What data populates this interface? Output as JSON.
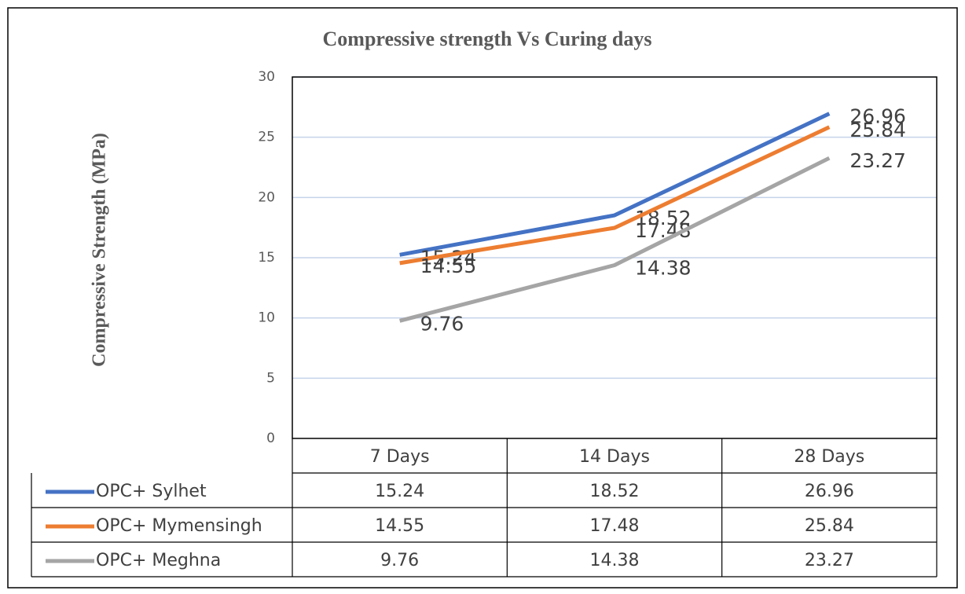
{
  "chart_data": {
    "type": "line",
    "title": "Compressive strength Vs Curing days",
    "y_label": "Compressive Strength (MPa)",
    "categories": [
      "7 Days",
      "14 Days",
      "28 Days"
    ],
    "series": [
      {
        "name": "OPC+ Sylhet",
        "color": "#4472c4",
        "values": [
          15.24,
          18.52,
          26.96
        ]
      },
      {
        "name": "OPC+ Mymensingh",
        "color": "#ed7d31",
        "values": [
          14.55,
          17.48,
          25.84
        ]
      },
      {
        "name": "OPC+ Meghna",
        "color": "#a5a5a5",
        "values": [
          9.76,
          14.38,
          23.27
        ]
      }
    ],
    "ylim": [
      0,
      30
    ],
    "yticks": [
      0,
      5,
      10,
      15,
      20,
      25,
      30
    ],
    "grid": true,
    "data_table": true
  }
}
